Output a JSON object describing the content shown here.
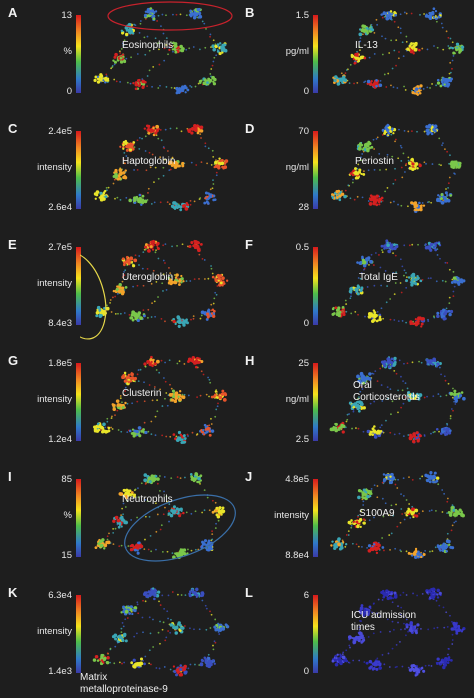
{
  "panels": [
    {
      "letter": "A",
      "max": "13",
      "min": "0",
      "unit": "%",
      "title": "Eosinophils",
      "palette": "eos"
    },
    {
      "letter": "B",
      "max": "1.5",
      "min": "0",
      "unit": "pg/ml",
      "title": "IL-13",
      "palette": "mixed"
    },
    {
      "letter": "C",
      "max": "2.4e5",
      "min": "2.6e4",
      "unit": "intensity",
      "title": "Haptoglobin",
      "palette": "warm"
    },
    {
      "letter": "D",
      "max": "70",
      "min": "28",
      "unit": "ng/ml",
      "title": "Periostin",
      "palette": "mixed"
    },
    {
      "letter": "E",
      "max": "2.7e5",
      "min": "8.4e3",
      "unit": "intensity",
      "title": "Uteroglobin",
      "palette": "warm"
    },
    {
      "letter": "F",
      "max": "0.5",
      "min": "0",
      "unit": "",
      "title": "Total IgE",
      "palette": "cool"
    },
    {
      "letter": "G",
      "max": "1.8e5",
      "min": "1.2e4",
      "unit": "intensity",
      "title": "Clusterin",
      "palette": "warm"
    },
    {
      "letter": "H",
      "max": "25",
      "min": "2.5",
      "unit": "ng/ml",
      "title": "Oral Corticosteroids",
      "palette": "cool"
    },
    {
      "letter": "I",
      "max": "85",
      "min": "15",
      "unit": "%",
      "title": "Neutrophils",
      "palette": "neut"
    },
    {
      "letter": "J",
      "max": "4.8e5",
      "min": "8.8e4",
      "unit": "intensity",
      "title": "S100A9",
      "palette": "mixed"
    },
    {
      "letter": "K",
      "max": "6.3e4",
      "min": "1.4e3",
      "unit": "intensity",
      "title": "Matrix metalloproteinase-9",
      "palette": "cool"
    },
    {
      "letter": "L",
      "max": "6",
      "min": "0",
      "unit": "",
      "title": "ICU admission times",
      "palette": "blue"
    }
  ],
  "colors": {
    "background": "#1e1e1e",
    "red_ellipse": "#c8222c",
    "yellow_ellipse": "#e6d84a",
    "blue_ellipse": "#3a6fa8"
  }
}
